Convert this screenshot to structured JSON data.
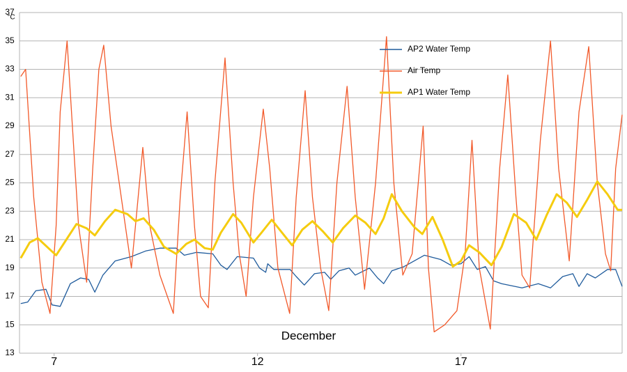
{
  "chart_data": {
    "type": "line",
    "xlabel": "December",
    "ylabel": "°C",
    "xlim": [
      6.15,
      20.96
    ],
    "xticks": [
      7,
      12,
      17
    ],
    "ylim": [
      13,
      37
    ],
    "yticks": [
      13,
      15,
      17,
      19,
      21,
      23,
      25,
      27,
      29,
      31,
      33,
      35,
      37
    ],
    "grid": true,
    "legend": "upper right",
    "series": [
      {
        "name": "AP2 Water Temp",
        "color": "#1f5b9c",
        "x": [
          6.18,
          6.35,
          6.55,
          6.8,
          6.95,
          7.15,
          7.4,
          7.65,
          7.85,
          8.0,
          8.2,
          8.5,
          8.9,
          9.25,
          9.6,
          10.0,
          10.2,
          10.5,
          10.9,
          11.1,
          11.25,
          11.5,
          11.9,
          12.05,
          12.2,
          12.25,
          12.4,
          12.8,
          12.95,
          13.15,
          13.4,
          13.65,
          13.8,
          14.0,
          14.25,
          14.4,
          14.75,
          14.95,
          15.1,
          15.3,
          15.6,
          16.1,
          16.5,
          16.75,
          17.0,
          17.2,
          17.4,
          17.6,
          17.8,
          18.0,
          18.5,
          18.9,
          19.2,
          19.5,
          19.75,
          19.9,
          20.1,
          20.3,
          20.6,
          20.8,
          20.96
        ],
        "values": [
          16.5,
          16.6,
          17.4,
          17.5,
          16.4,
          16.3,
          17.9,
          18.3,
          18.2,
          17.3,
          18.5,
          19.5,
          19.8,
          20.2,
          20.4,
          20.4,
          19.9,
          20.1,
          20,
          19.2,
          18.9,
          19.8,
          19.7,
          19,
          18.7,
          19.3,
          18.9,
          18.9,
          18.4,
          17.8,
          18.6,
          18.7,
          18.2,
          18.8,
          19,
          18.5,
          19,
          18.3,
          17.9,
          18.8,
          19.1,
          19.9,
          19.6,
          19.2,
          19.3,
          19.8,
          18.9,
          19.1,
          18.1,
          17.9,
          17.6,
          17.9,
          17.6,
          18.4,
          18.6,
          17.7,
          18.6,
          18.3,
          18.9,
          18.9,
          17.7
        ]
      },
      {
        "name": "Air Temp",
        "color": "#f2592a",
        "x": [
          6.18,
          6.3,
          6.5,
          6.7,
          6.9,
          7.05,
          7.15,
          7.32,
          7.45,
          7.6,
          7.8,
          7.95,
          8.1,
          8.22,
          8.4,
          8.6,
          8.9,
          9.0,
          9.18,
          9.35,
          9.6,
          9.93,
          10.1,
          10.27,
          10.45,
          10.6,
          10.79,
          10.95,
          11.2,
          11.4,
          11.55,
          11.72,
          11.9,
          12.14,
          12.3,
          12.5,
          12.79,
          12.95,
          13.17,
          13.35,
          13.55,
          13.75,
          13.95,
          14.2,
          14.4,
          14.63,
          14.9,
          15.17,
          15.35,
          15.57,
          15.8,
          16.07,
          16.2,
          16.34,
          16.6,
          16.9,
          17.1,
          17.27,
          17.45,
          17.72,
          17.95,
          18.15,
          18.35,
          18.5,
          18.69,
          18.95,
          19.2,
          19.4,
          19.66,
          19.9,
          20.14,
          20.35,
          20.55,
          20.68,
          20.8,
          20.96
        ],
        "values": [
          32.5,
          33,
          24,
          18,
          15.8,
          22,
          30,
          35,
          29,
          22,
          18,
          26,
          33,
          34.7,
          29,
          25,
          19,
          22,
          27.5,
          22,
          18.5,
          15.8,
          24,
          30,
          22,
          17,
          16.2,
          25,
          33.8,
          25,
          20,
          17,
          24,
          30.2,
          26,
          19,
          15.8,
          24,
          31.5,
          24,
          19,
          16,
          25,
          31.8,
          24,
          17.5,
          25,
          35.3,
          25,
          18.5,
          20,
          29,
          19,
          14.5,
          15,
          16,
          20,
          28,
          19,
          14.7,
          26,
          32.6,
          24,
          18.5,
          17.6,
          28,
          35,
          26,
          19.5,
          30,
          34.6,
          25,
          20,
          18.8,
          26,
          29.8
        ]
      },
      {
        "name": "AP1 Water Temp",
        "color": "#f5cc0f",
        "x": [
          6.18,
          6.4,
          6.6,
          6.9,
          7.05,
          7.3,
          7.55,
          7.8,
          8.0,
          8.25,
          8.5,
          8.8,
          9.0,
          9.2,
          9.45,
          9.7,
          10.0,
          10.25,
          10.45,
          10.7,
          10.9,
          11.1,
          11.4,
          11.6,
          11.9,
          12.1,
          12.35,
          12.6,
          12.85,
          13.1,
          13.35,
          13.6,
          13.85,
          14.1,
          14.4,
          14.65,
          14.9,
          15.1,
          15.3,
          15.55,
          15.85,
          16.05,
          16.3,
          16.55,
          16.8,
          17.0,
          17.2,
          17.45,
          17.75,
          18.0,
          18.3,
          18.6,
          18.85,
          19.1,
          19.35,
          19.6,
          19.85,
          20.1,
          20.35,
          20.6,
          20.85,
          20.96
        ],
        "values": [
          19.7,
          20.8,
          21.1,
          20.3,
          19.9,
          21,
          22.1,
          21.8,
          21.3,
          22.3,
          23.1,
          22.8,
          22.3,
          22.5,
          21.7,
          20.5,
          20,
          20.7,
          21,
          20.4,
          20.3,
          21.5,
          22.8,
          22.2,
          20.8,
          21.5,
          22.4,
          21.5,
          20.6,
          21.7,
          22.3,
          21.6,
          20.8,
          21.8,
          22.7,
          22.2,
          21.4,
          22.5,
          24.2,
          23,
          21.9,
          21.4,
          22.6,
          21,
          19.1,
          19.5,
          20.6,
          20.1,
          19.2,
          20.5,
          22.8,
          22.2,
          21,
          22.7,
          24.2,
          23.6,
          22.6,
          23.8,
          25.1,
          24.2,
          23.1,
          23.1
        ]
      }
    ]
  }
}
